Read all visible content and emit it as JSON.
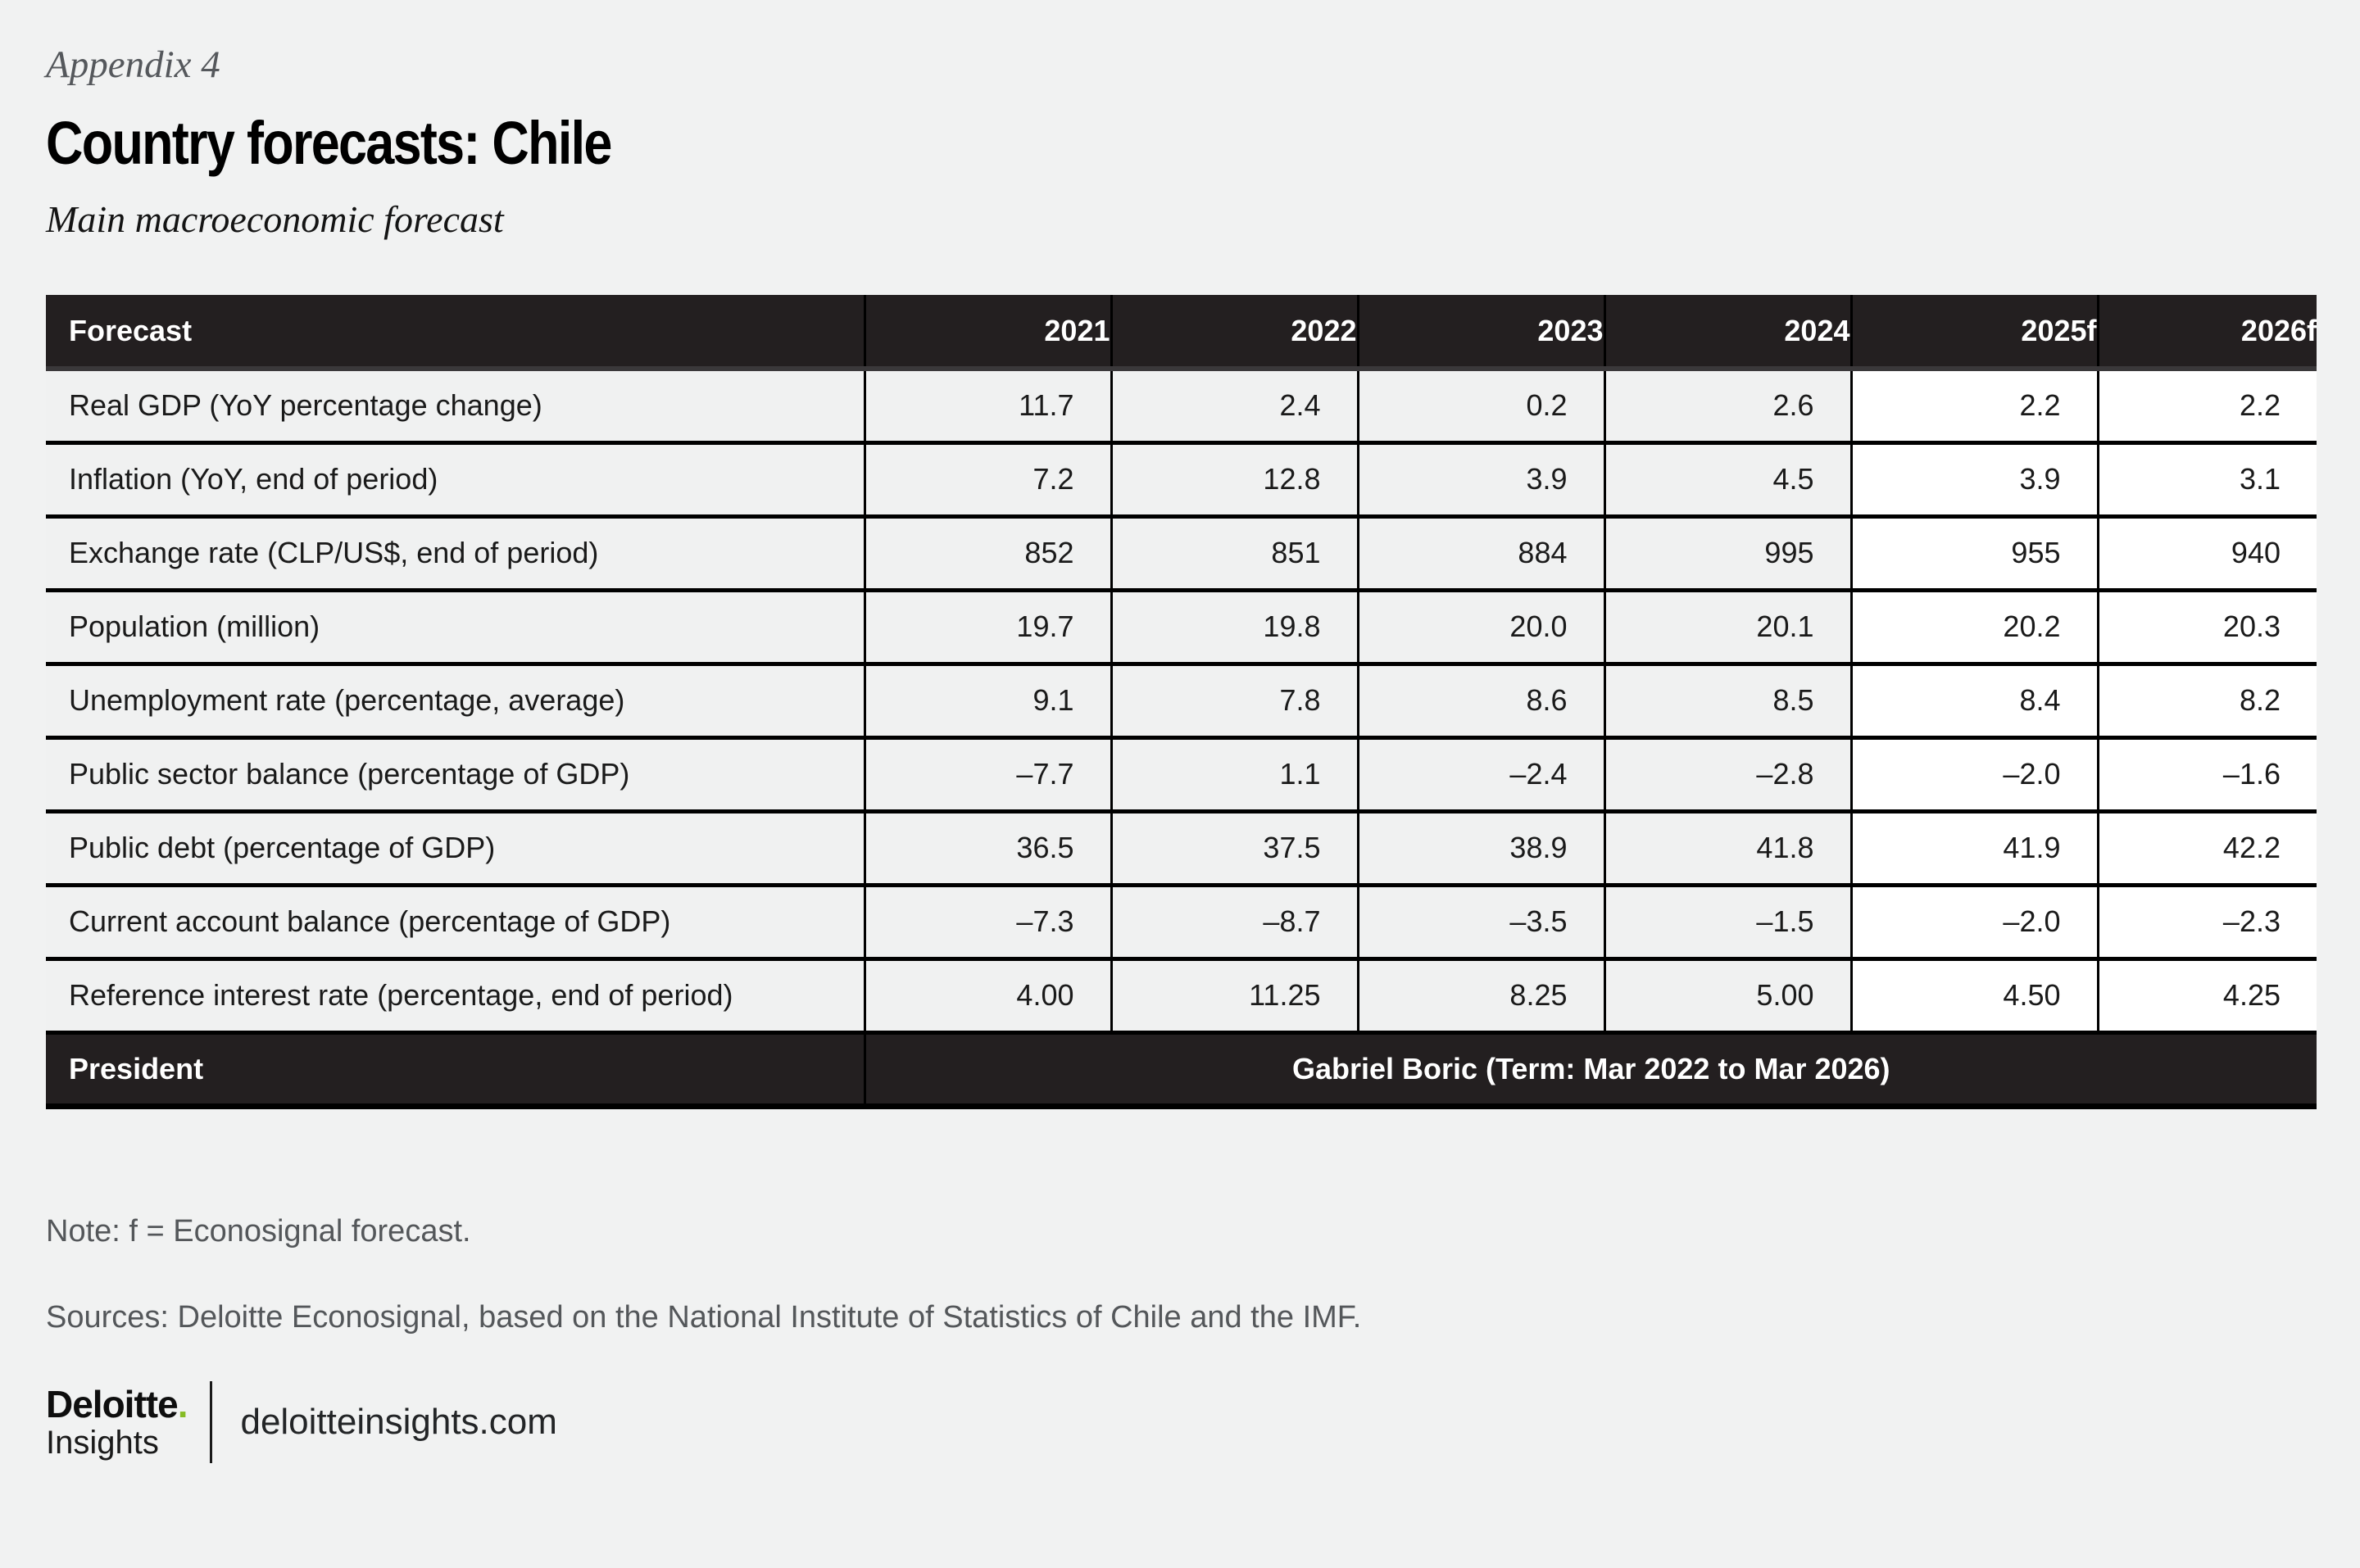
{
  "page": {
    "appendix": "Appendix 4",
    "title": "Country forecasts: Chile",
    "subtitle": "Main macroeconomic forecast",
    "note": "Note: f = Econosignal forecast.",
    "sources": "Sources: Deloitte Econosignal, based on the National Institute of Statistics of Chile and the IMF.",
    "footer": {
      "brand_primary": "Deloitte",
      "brand_dot": ".",
      "brand_secondary": "Insights",
      "site": "deloitteinsights.com"
    }
  },
  "colors": {
    "page_background": "#f1f2f2",
    "header_background": "#231f20",
    "cell_gray": "#f0f1f1",
    "forecast_column_background": "#ffffff",
    "accent_green": "#86bc25",
    "muted_text": "#54575a",
    "border_black": "#000000"
  },
  "table": {
    "columns": [
      "Forecast",
      "2021",
      "2022",
      "2023",
      "2024",
      "2025f",
      "2026f"
    ],
    "forecast_columns": [
      "2025f",
      "2026f"
    ],
    "rows": [
      {
        "label": "Real GDP (YoY percentage change)",
        "values": [
          "11.7",
          "2.4",
          "0.2",
          "2.6",
          "2.2",
          "2.2"
        ]
      },
      {
        "label": "Inflation (YoY, end of period)",
        "values": [
          "7.2",
          "12.8",
          "3.9",
          "4.5",
          "3.9",
          "3.1"
        ]
      },
      {
        "label": "Exchange rate (CLP/US$, end of period)",
        "values": [
          "852",
          "851",
          "884",
          "995",
          "955",
          "940"
        ]
      },
      {
        "label": "Population (million)",
        "values": [
          "19.7",
          "19.8",
          "20.0",
          "20.1",
          "20.2",
          "20.3"
        ]
      },
      {
        "label": "Unemployment rate (percentage, average)",
        "values": [
          "9.1",
          "7.8",
          "8.6",
          "8.5",
          "8.4",
          "8.2"
        ]
      },
      {
        "label": "Public sector balance (percentage of GDP)",
        "values": [
          "–7.7",
          "1.1",
          "–2.4",
          "–2.8",
          "–2.0",
          "–1.6"
        ]
      },
      {
        "label": "Public debt (percentage of GDP)",
        "values": [
          "36.5",
          "37.5",
          "38.9",
          "41.8",
          "41.9",
          "42.2"
        ]
      },
      {
        "label": "Current account balance (percentage of GDP)",
        "values": [
          "–7.3",
          "–8.7",
          "–3.5",
          "–1.5",
          "–2.0",
          "–2.3"
        ]
      },
      {
        "label": "Reference interest rate (percentage, end of period)",
        "values": [
          "4.00",
          "11.25",
          "8.25",
          "5.00",
          "4.50",
          "4.25"
        ]
      }
    ],
    "president": {
      "label": "President",
      "value": "Gabriel Boric (Term: Mar 2022 to Mar 2026)"
    }
  }
}
